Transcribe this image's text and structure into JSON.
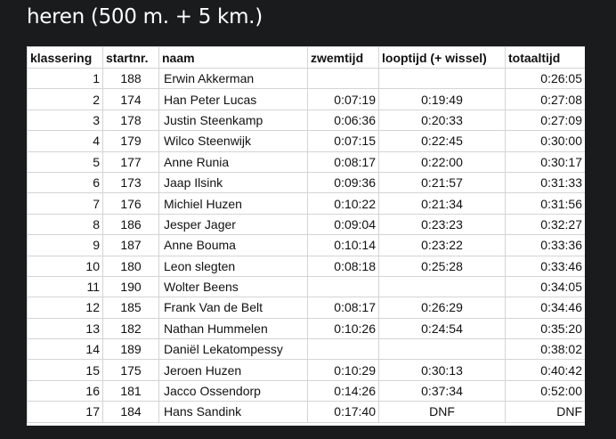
{
  "page": {
    "title": "heren (500 m. + 5 km.)"
  },
  "table": {
    "headers": [
      "klassering",
      "startnr.",
      "naam",
      "zwemtijd",
      "looptijd (+ wissel)",
      "totaaltijd"
    ],
    "rows": [
      [
        "1",
        "188",
        "Erwin Akkerman",
        "",
        "",
        "0:26:05"
      ],
      [
        "2",
        "174",
        "Han Peter Lucas",
        "0:07:19",
        "0:19:49",
        "0:27:08"
      ],
      [
        "3",
        "178",
        "Justin Steenkamp",
        "0:06:36",
        "0:20:33",
        "0:27:09"
      ],
      [
        "4",
        "179",
        "Wilco Steenwijk",
        "0:07:15",
        "0:22:45",
        "0:30:00"
      ],
      [
        "5",
        "177",
        "Anne Runia",
        "0:08:17",
        "0:22:00",
        "0:30:17"
      ],
      [
        "6",
        "173",
        "Jaap Ilsink",
        "0:09:36",
        "0:21:57",
        "0:31:33"
      ],
      [
        "7",
        "176",
        "Michiel Huzen",
        "0:10:22",
        "0:21:34",
        "0:31:56"
      ],
      [
        "8",
        "186",
        "Jesper Jager",
        "0:09:04",
        "0:23:23",
        "0:32:27"
      ],
      [
        "9",
        "187",
        "Anne Bouma",
        "0:10:14",
        "0:23:22",
        "0:33:36"
      ],
      [
        "10",
        "180",
        "Leon slegten",
        "0:08:18",
        "0:25:28",
        "0:33:46"
      ],
      [
        "11",
        "190",
        "Wolter Beens",
        "",
        "",
        "0:34:05"
      ],
      [
        "12",
        "185",
        "Frank Van de Belt",
        "0:08:17",
        "0:26:29",
        "0:34:46"
      ],
      [
        "13",
        "182",
        "Nathan Hummelen",
        "0:10:26",
        "0:24:54",
        "0:35:20"
      ],
      [
        "14",
        "189",
        "Daniël Lekatompessy",
        "",
        "",
        "0:38:02"
      ],
      [
        "15",
        "175",
        "Jeroen Huzen",
        "0:10:29",
        "0:30:13",
        "0:40:42"
      ],
      [
        "16",
        "181",
        "Jacco Ossendorp",
        "0:14:26",
        "0:37:34",
        "0:52:00"
      ],
      [
        "17",
        "184",
        "Hans Sandink",
        "0:17:40",
        "DNF",
        "DNF"
      ]
    ]
  }
}
